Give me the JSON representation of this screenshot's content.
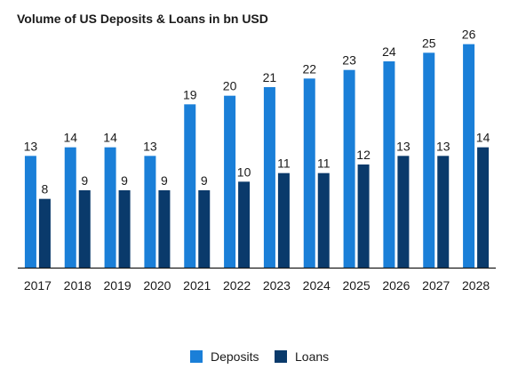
{
  "chart_data": {
    "type": "bar",
    "title": "Volume of US Deposits & Loans in bn USD",
    "categories": [
      "2017",
      "2018",
      "2019",
      "2020",
      "2021",
      "2022",
      "2023",
      "2024",
      "2025",
      "2026",
      "2027",
      "2028"
    ],
    "series": [
      {
        "name": "Deposits",
        "color": "#1a7fd8",
        "values": [
          13,
          14,
          14,
          13,
          19,
          20,
          21,
          22,
          23,
          24,
          25,
          26
        ]
      },
      {
        "name": "Loans",
        "color": "#0a3a6b",
        "values": [
          8,
          9,
          9,
          9,
          9,
          10,
          11,
          11,
          12,
          13,
          13,
          14
        ]
      }
    ],
    "xlabel": "",
    "ylabel": "",
    "ylim": [
      0,
      27
    ],
    "grid": false,
    "legend_position": "bottom"
  }
}
